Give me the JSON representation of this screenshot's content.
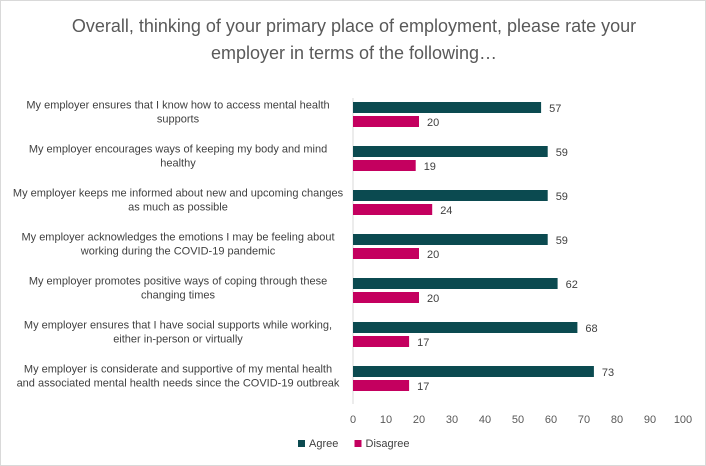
{
  "chart_data": {
    "type": "bar",
    "orientation": "horizontal",
    "title": "Overall, thinking of your primary place of employment, please rate your employer in terms of the following…",
    "categories": [
      [
        "My employer ensures that I know how to access mental health",
        "supports"
      ],
      [
        "My employer encourages ways of keeping my body and mind",
        "healthy"
      ],
      [
        "My employer keeps me informed about new and upcoming changes",
        "as much as possible"
      ],
      [
        "My employer acknowledges the emotions I may be feeling about",
        "working during the COVID-19 pandemic"
      ],
      [
        "My employer promotes positive ways of coping through these",
        "changing times"
      ],
      [
        "My employer ensures that I have social supports while working,",
        "either in-person or virtually"
      ],
      [
        "My employer is considerate and supportive of my mental health",
        "and associated mental health needs since the COVID-19 outbreak"
      ]
    ],
    "series": [
      {
        "name": "Agree",
        "color": "#0b4a50",
        "values": [
          57,
          59,
          59,
          59,
          62,
          68,
          73
        ]
      },
      {
        "name": "Disagree",
        "color": "#c4005f",
        "values": [
          20,
          19,
          24,
          20,
          20,
          17,
          17
        ]
      }
    ],
    "xlim": [
      0,
      100
    ],
    "xticks": [
      0,
      10,
      20,
      30,
      40,
      50,
      60,
      70,
      80,
      90,
      100
    ],
    "data_labels": true,
    "grid": false,
    "legend_position": "bottom"
  }
}
